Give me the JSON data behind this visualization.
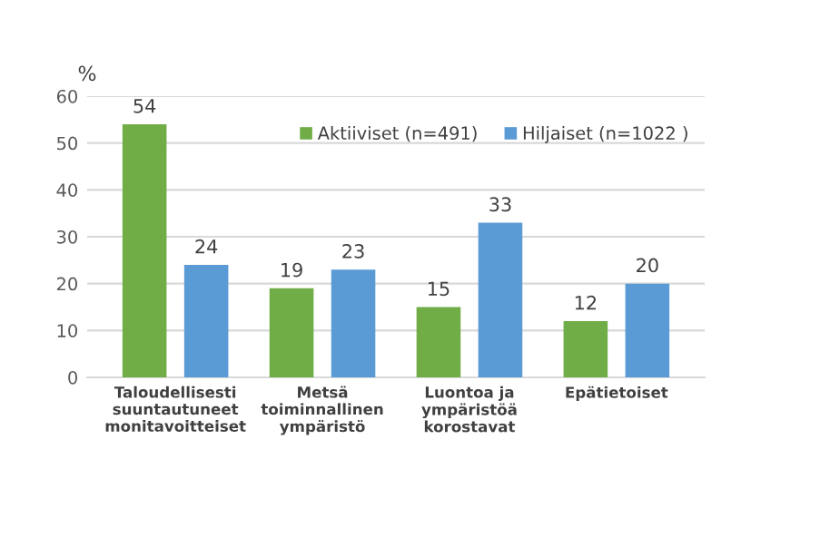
{
  "chart_data": {
    "type": "bar",
    "ylabel": "%",
    "categories": [
      "Taloudellisesti\nsuuntautuneet\nmonitavoitteiset",
      "Metsä\ntoiminnallinen\nympäristö",
      "Luontoa ja\nympäristöä\nkorostavat",
      "Epätietoiset"
    ],
    "series": [
      {
        "name": "Aktiiviset (n=491)",
        "color": "#70ad47",
        "values": [
          54,
          19,
          15,
          12
        ]
      },
      {
        "name": "Hiljaiset (n=1022 )",
        "color": "#5b9bd5",
        "values": [
          24,
          23,
          33,
          20
        ]
      }
    ],
    "ylim": [
      0,
      60
    ],
    "yticks": [
      0,
      10,
      20,
      30,
      40,
      50,
      60
    ],
    "grid": "y",
    "legend": "top right",
    "data_labels": true
  }
}
